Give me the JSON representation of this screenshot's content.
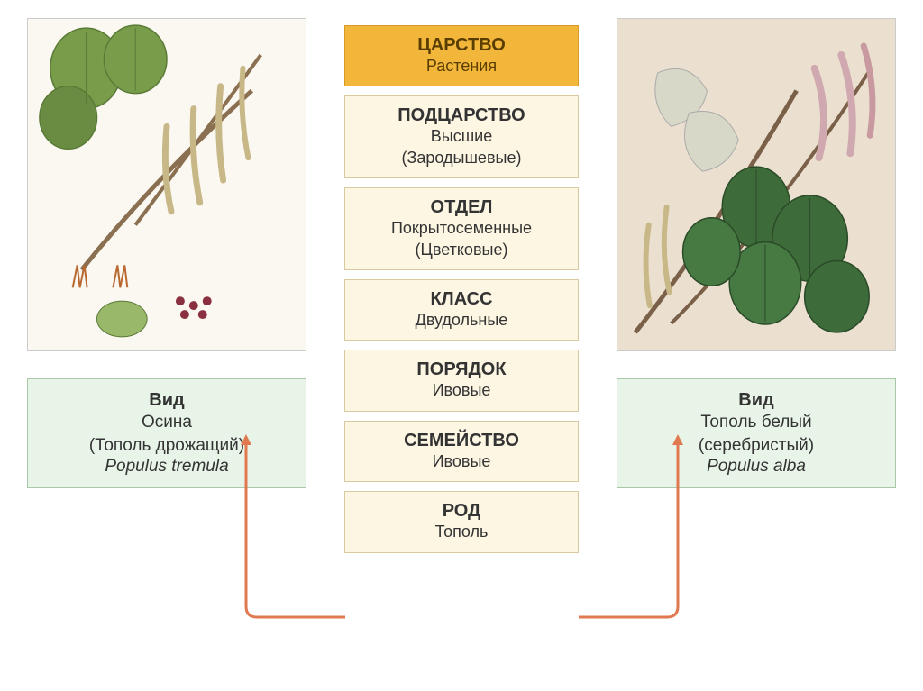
{
  "taxonomy": [
    {
      "title": "ЦАРСТВО",
      "sub": "Растения",
      "style": "kingdom"
    },
    {
      "title": "ПОДЦАРСТВО",
      "sub": "Высшие\n(Зародышевые)",
      "style": "normal"
    },
    {
      "title": "ОТДЕЛ",
      "sub": "Покрытосеменные\n(Цветковые)",
      "style": "normal"
    },
    {
      "title": "КЛАСС",
      "sub": "Двудольные",
      "style": "normal"
    },
    {
      "title": "ПОРЯДОК",
      "sub": "Ивовые",
      "style": "normal"
    },
    {
      "title": "СЕМЕЙСТВО",
      "sub": "Ивовые",
      "style": "normal"
    },
    {
      "title": "РОД",
      "sub": "Тополь",
      "style": "normal"
    }
  ],
  "species": {
    "left": {
      "title": "Вид",
      "name": "Осина",
      "paren": "(Тополь дрожащий)",
      "latin": "Populus tremula"
    },
    "right": {
      "title": "Вид",
      "name": "Тополь белый",
      "paren": "(серебристый)",
      "latin": "Populus alba"
    }
  },
  "colors": {
    "kingdom_bg": "#f2b63a",
    "normal_bg": "#fdf6e3",
    "species_bg": "#e8f4e8",
    "arrow": "#e07850"
  },
  "left_img": {
    "bg": "#faf8f0",
    "leaf": "#789c4a",
    "leaf_dark": "#5a7a38",
    "branch": "#8a7050",
    "catkin": "#c8b888"
  },
  "right_img": {
    "bg": "#ebe0d0",
    "leaf": "#3d6b3a",
    "leaf_light": "#d8d8c8",
    "branch": "#7a6048",
    "catkin": "#d0a8b0"
  }
}
